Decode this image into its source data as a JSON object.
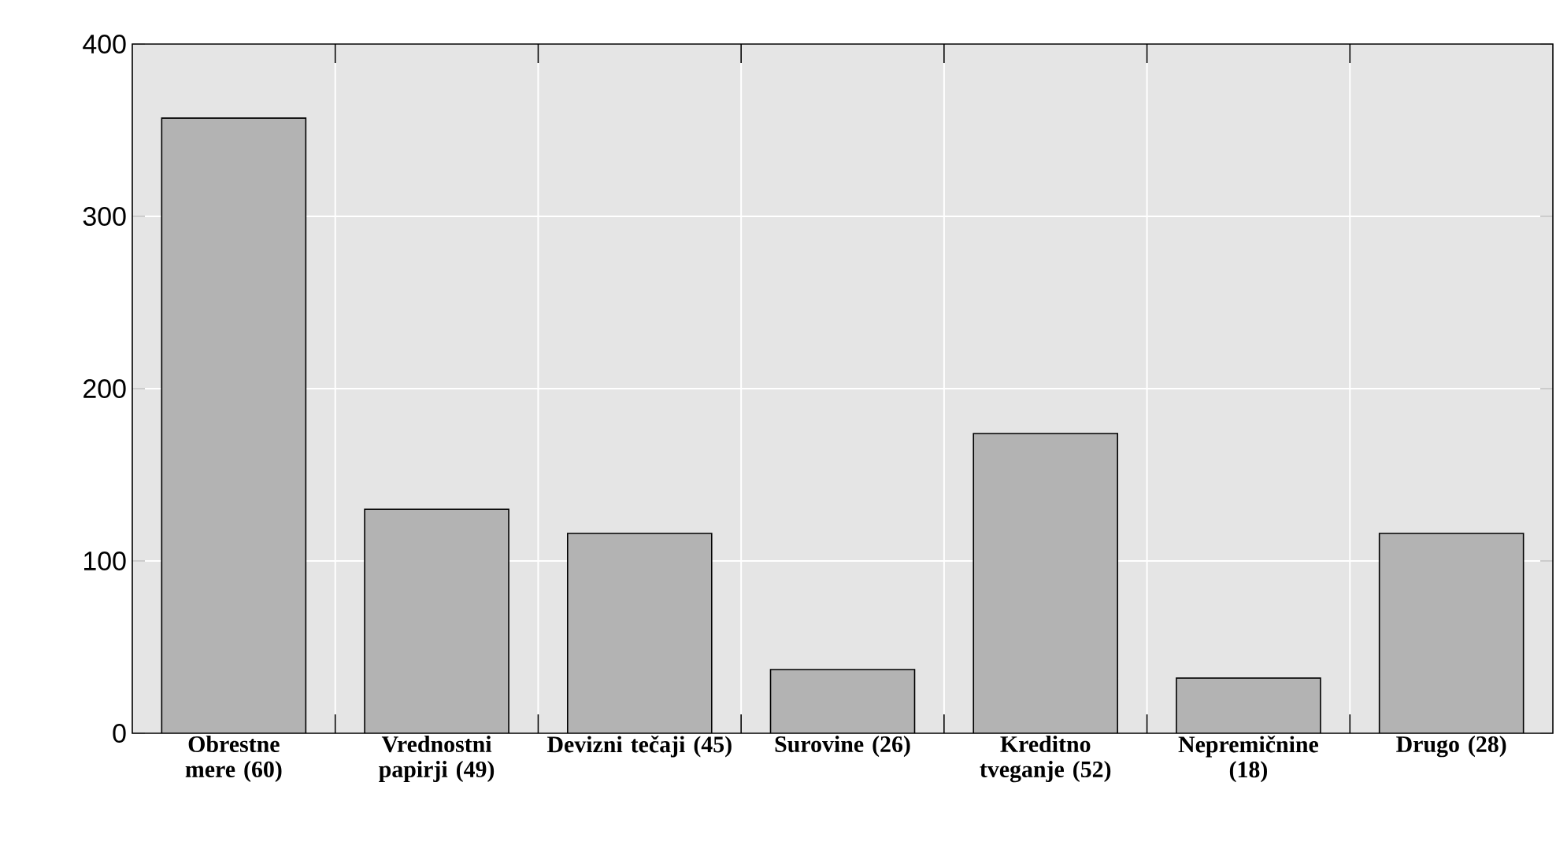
{
  "chart_data": {
    "type": "bar",
    "categories": [
      "Obrestne mere (60)",
      "Vrednostni papirji (49)",
      "Devizni tečaji (45)",
      "Surovine (26)",
      "Kreditno tveganje (52)",
      "Nepremičnine (18)",
      "Drugo (28)"
    ],
    "values": [
      357,
      130,
      116,
      37,
      174,
      32,
      116
    ],
    "color": "#b3b3b3",
    "ylim": [
      0,
      400
    ],
    "yticks": [
      0,
      100,
      200,
      300,
      400
    ],
    "grid": true
  }
}
